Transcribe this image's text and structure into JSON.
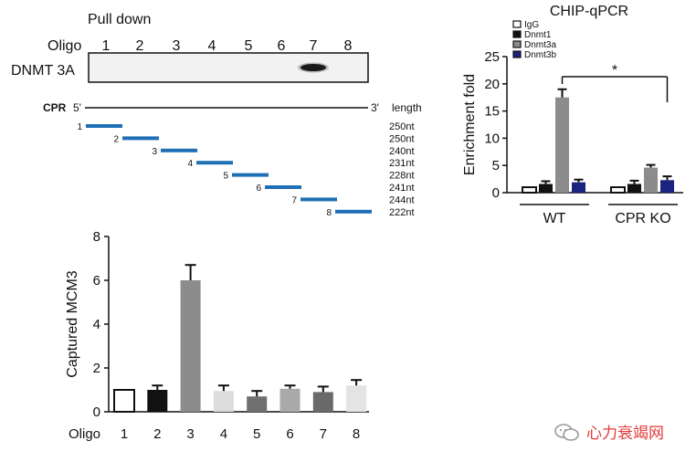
{
  "pulldown": {
    "title": "Pull down",
    "oligo_label": "Oligo",
    "oligos": [
      "1",
      "2",
      "3",
      "4",
      "5",
      "6",
      "7",
      "8"
    ],
    "blot_label": "DNMT 3A",
    "band_lane_index": 6
  },
  "cpr": {
    "label": "CPR",
    "five_prime": "5'",
    "three_prime": "3'",
    "length_header": "length",
    "fragments": [
      {
        "id": "1",
        "length": "250nt"
      },
      {
        "id": "2",
        "length": "250nt"
      },
      {
        "id": "3",
        "length": "240nt"
      },
      {
        "id": "4",
        "length": "231nt"
      },
      {
        "id": "5",
        "length": "228nt"
      },
      {
        "id": "6",
        "length": "241nt"
      },
      {
        "id": "7",
        "length": "244nt"
      },
      {
        "id": "8",
        "length": "222nt"
      }
    ],
    "segment_color": "#1f6fb5"
  },
  "watermark": {
    "text": "心力衰竭网",
    "color": "#e23b3b"
  },
  "chart_data": [
    {
      "type": "bar",
      "title": "",
      "xlabel": "Oligo",
      "ylabel": "Captured MCM3",
      "categories": [
        "1",
        "2",
        "3",
        "4",
        "5",
        "6",
        "7",
        "8"
      ],
      "values": [
        1.0,
        1.0,
        6.0,
        0.95,
        0.7,
        1.05,
        0.9,
        1.2
      ],
      "errors": [
        0.0,
        0.2,
        0.7,
        0.25,
        0.25,
        0.15,
        0.25,
        0.25
      ],
      "bar_colors": [
        "#ffffff",
        "#111111",
        "#8c8c8c",
        "#dcdcdc",
        "#6f6f6f",
        "#a9a9a9",
        "#6a6a6a",
        "#e4e4e4"
      ],
      "ylim": [
        0,
        8
      ],
      "yticks": [
        "0",
        "2",
        "4",
        "6",
        "8"
      ]
    },
    {
      "type": "bar",
      "title": "CHIP-qPCR",
      "xlabel": "",
      "ylabel": "Enrichment fold",
      "categories": [
        "WT",
        "CPR KO"
      ],
      "series": [
        {
          "name": "IgG",
          "values": [
            1.0,
            1.0
          ],
          "errors": [
            0.0,
            0.0
          ],
          "color": "#ffffff"
        },
        {
          "name": "Dnmt1",
          "values": [
            1.6,
            1.6
          ],
          "errors": [
            0.5,
            0.6
          ],
          "color": "#111111"
        },
        {
          "name": "Dnmt3a",
          "values": [
            17.5,
            4.6
          ],
          "errors": [
            1.5,
            0.5
          ],
          "color": "#8c8c8c"
        },
        {
          "name": "Dnmt3b",
          "values": [
            1.9,
            2.3
          ],
          "errors": [
            0.5,
            0.7
          ],
          "color": "#1a237e"
        }
      ],
      "ylim": [
        0,
        25
      ],
      "yticks": [
        "0",
        "5",
        "10",
        "15",
        "20",
        "25"
      ],
      "significance": "*"
    }
  ]
}
